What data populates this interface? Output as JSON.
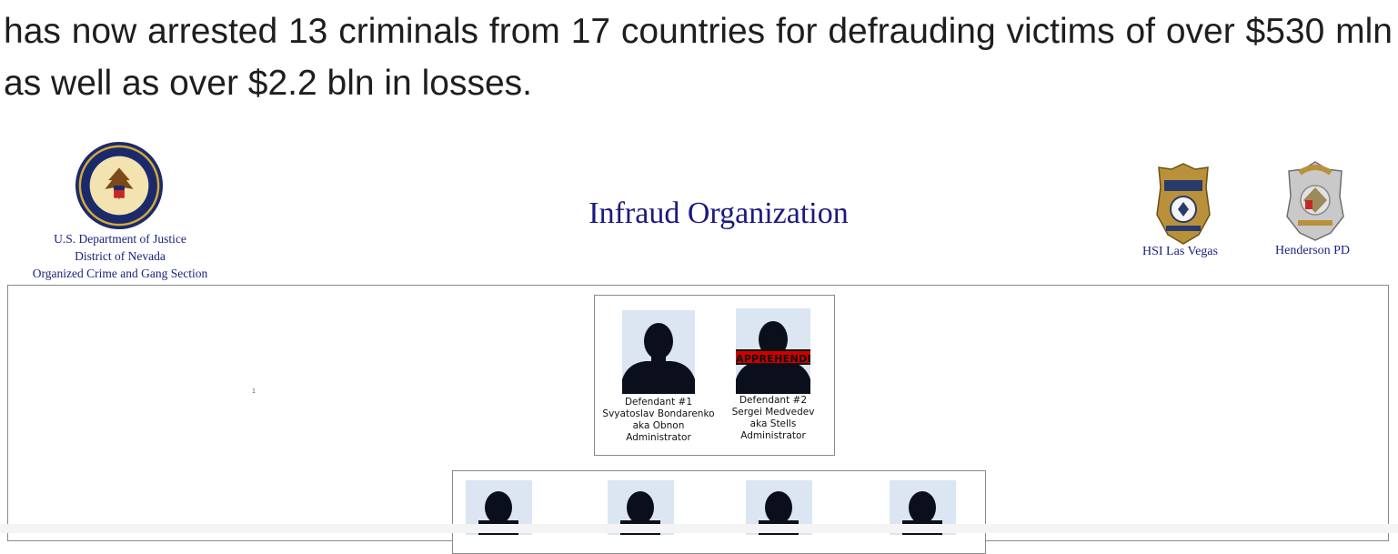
{
  "article": {
    "text": "has now arrested 13 criminals from 17 countries for defrauding victims of over $530 mln as well as over $2.2 bln in losses."
  },
  "figure": {
    "title": "Infraud Organization",
    "doj": {
      "line1": "U.S. Department of Justice",
      "line2": "District of Nevada",
      "line3": "Organized Crime and Gang Section",
      "seal_icon": "doj-seal-icon"
    },
    "badges": [
      {
        "label": "HSI Las Vegas",
        "icon": "hsi-badge-icon"
      },
      {
        "label": "Henderson PD",
        "icon": "henderson-police-badge-icon"
      }
    ],
    "page_number": "1",
    "admins": [
      {
        "number": "Defendant #1",
        "name": "Svyatoslav Bondarenko",
        "alias": "aka Obnon",
        "role": "Administrator",
        "stamp": ""
      },
      {
        "number": "Defendant #2",
        "name": "Sergei Medvedev",
        "alias": "aka Stells",
        "role": "Administrator",
        "stamp": "APPREHENDED"
      }
    ],
    "colors": {
      "title": "#1a1a80",
      "stamp": "#cc0000",
      "photo_bg": "#dbe6f2"
    }
  }
}
